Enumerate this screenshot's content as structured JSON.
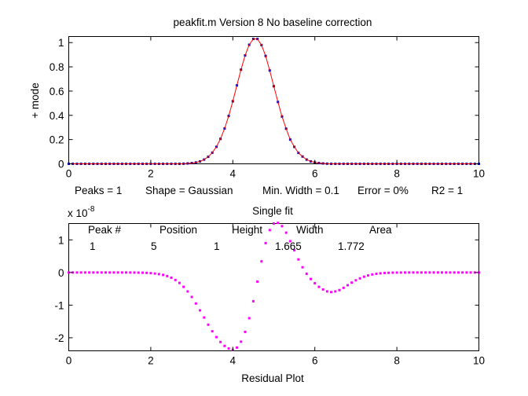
{
  "colors": {
    "background": "#ffffff",
    "axes": "#000000",
    "data_points": "#0000b0",
    "fit_line": "#ff0000",
    "residual_points": "#ff00ff"
  },
  "chart_data": [
    {
      "type": "scatter",
      "title": "peakfit.m Version 8   No baseline correction",
      "xlabel": "",
      "ylabel": "+ mode",
      "xlim": [
        0,
        10
      ],
      "ylim": [
        0,
        1.05
      ],
      "xticks": [
        "0",
        "2",
        "4",
        "6",
        "8",
        "10"
      ],
      "yticks": [
        "0",
        "0.2",
        "0.4",
        "0.6",
        "0.8",
        "1"
      ],
      "grid": false,
      "series": [
        {
          "kind": "points",
          "marker": "dot",
          "color": "#0000b0",
          "x": [
            0,
            0.1,
            0.2,
            0.3,
            0.4,
            0.5,
            0.6,
            0.7,
            0.8,
            0.9,
            1,
            1.1,
            1.2,
            1.3,
            1.4,
            1.5,
            1.6,
            1.7,
            1.8,
            1.9,
            2,
            2.1,
            2.2,
            2.3,
            2.4,
            2.5,
            2.6,
            2.7,
            2.8,
            2.9,
            3,
            3.1,
            3.2,
            3.3,
            3.4,
            3.5,
            3.6,
            3.7,
            3.8,
            3.9,
            4,
            4.1,
            4.2,
            4.3,
            4.4,
            4.5,
            4.6,
            4.7,
            4.8,
            4.9,
            5,
            5.1,
            5.2,
            5.3,
            5.4,
            5.5,
            5.6,
            5.7,
            5.8,
            5.9,
            6,
            6.1,
            6.2,
            6.3,
            6.4,
            6.5,
            6.6,
            6.7,
            6.8,
            6.9,
            7,
            7.1,
            7.2,
            7.3,
            7.4,
            7.5,
            7.6,
            7.7,
            7.8,
            7.9,
            8,
            8.1,
            8.2,
            8.3,
            8.4,
            8.5,
            8.6,
            8.7,
            8.8,
            8.9,
            9,
            9.1,
            9.2,
            9.3,
            9.4,
            9.5,
            9.6,
            9.7,
            9.8,
            9.9,
            10
          ],
          "y": [
            0,
            0,
            0,
            0,
            0,
            0,
            0,
            0,
            0,
            0,
            0,
            0,
            0,
            0,
            0,
            0,
            0,
            0,
            0,
            0,
            0,
            0,
            0,
            0,
            0,
            0,
            0,
            0,
            0.001,
            0.003,
            0.006,
            0.011,
            0.02,
            0.035,
            0.058,
            0.092,
            0.14,
            0.206,
            0.291,
            0.395,
            0.516,
            0.647,
            0.777,
            0.894,
            0.982,
            1.03,
            1.03,
            0.98,
            0.89,
            0.77,
            0.64,
            0.51,
            0.39,
            0.29,
            0.2,
            0.14,
            0.09,
            0.06,
            0.035,
            0.02,
            0.011,
            0.006,
            0.003,
            0.001,
            0,
            0,
            0,
            0,
            0,
            0,
            0,
            0,
            0,
            0,
            0,
            0,
            0,
            0,
            0,
            0,
            0,
            0,
            0,
            0,
            0,
            0,
            0,
            0,
            0,
            0,
            0,
            0,
            0,
            0,
            0,
            0,
            0,
            0,
            0,
            0,
            0
          ]
        },
        {
          "kind": "line",
          "color": "#ff0000",
          "x": [
            0,
            0.1,
            0.2,
            0.3,
            0.4,
            0.5,
            0.6,
            0.7,
            0.8,
            0.9,
            1,
            1.1,
            1.2,
            1.3,
            1.4,
            1.5,
            1.6,
            1.7,
            1.8,
            1.9,
            2,
            2.1,
            2.2,
            2.3,
            2.4,
            2.5,
            2.6,
            2.7,
            2.8,
            2.9,
            3,
            3.1,
            3.2,
            3.3,
            3.4,
            3.5,
            3.6,
            3.7,
            3.8,
            3.9,
            4,
            4.1,
            4.2,
            4.3,
            4.4,
            4.5,
            4.6,
            4.7,
            4.8,
            4.9,
            5,
            5.1,
            5.2,
            5.3,
            5.4,
            5.5,
            5.6,
            5.7,
            5.8,
            5.9,
            6,
            6.1,
            6.2,
            6.3,
            6.4,
            6.5,
            6.6,
            6.7,
            6.8,
            6.9,
            7,
            7.1,
            7.2,
            7.3,
            7.4,
            7.5,
            7.6,
            7.7,
            7.8,
            7.9,
            8,
            8.1,
            8.2,
            8.3,
            8.4,
            8.5,
            8.6,
            8.7,
            8.8,
            8.9,
            9,
            9.1,
            9.2,
            9.3,
            9.4,
            9.5,
            9.6,
            9.7,
            9.8,
            9.9,
            10
          ],
          "y": [
            0,
            0,
            0,
            0,
            0,
            0,
            0,
            0,
            0,
            0,
            0,
            0,
            0,
            0,
            0,
            0,
            0,
            0,
            0,
            0,
            0,
            0,
            0,
            0,
            0,
            0,
            0,
            0,
            0.001,
            0.003,
            0.006,
            0.011,
            0.02,
            0.035,
            0.058,
            0.092,
            0.14,
            0.206,
            0.291,
            0.395,
            0.516,
            0.647,
            0.777,
            0.894,
            0.982,
            1.03,
            1.03,
            0.98,
            0.89,
            0.77,
            0.64,
            0.51,
            0.39,
            0.29,
            0.2,
            0.14,
            0.09,
            0.06,
            0.035,
            0.02,
            0.011,
            0.006,
            0.003,
            0.001,
            0,
            0,
            0,
            0,
            0,
            0,
            0,
            0,
            0,
            0,
            0,
            0,
            0,
            0,
            0,
            0,
            0,
            0,
            0,
            0,
            0,
            0,
            0,
            0,
            0,
            0,
            0,
            0,
            0,
            0,
            0,
            0,
            0,
            0,
            0,
            0,
            0
          ]
        }
      ]
    },
    {
      "type": "scatter",
      "title": "Single fit",
      "xlabel": "Residual Plot",
      "ylabel": "",
      "y_exponent": "x 10",
      "y_exponent_power": "-8",
      "xlim": [
        0,
        10
      ],
      "ylim": [
        -2.4,
        1.5
      ],
      "xticks": [
        "0",
        "2",
        "4",
        "6",
        "8",
        "10"
      ],
      "yticks": [
        "-2",
        "-1",
        "0",
        "1"
      ],
      "grid": false,
      "series": [
        {
          "kind": "points",
          "marker": "dot",
          "color": "#ff00ff",
          "x": [
            0,
            0.1,
            0.2,
            0.3,
            0.4,
            0.5,
            0.6,
            0.7,
            0.8,
            0.9,
            1,
            1.1,
            1.2,
            1.3,
            1.4,
            1.5,
            1.6,
            1.7,
            1.8,
            1.9,
            2,
            2.1,
            2.2,
            2.3,
            2.4,
            2.5,
            2.6,
            2.7,
            2.8,
            2.9,
            3,
            3.1,
            3.2,
            3.3,
            3.4,
            3.5,
            3.6,
            3.7,
            3.8,
            3.9,
            4,
            4.1,
            4.2,
            4.3,
            4.4,
            4.5,
            4.6,
            4.7,
            4.8,
            4.9,
            5,
            5.1,
            5.2,
            5.3,
            5.4,
            5.5,
            5.6,
            5.7,
            5.8,
            5.9,
            6,
            6.1,
            6.2,
            6.3,
            6.4,
            6.5,
            6.6,
            6.7,
            6.8,
            6.9,
            7,
            7.1,
            7.2,
            7.3,
            7.4,
            7.5,
            7.6,
            7.7,
            7.8,
            7.9,
            8,
            8.1,
            8.2,
            8.3,
            8.4,
            8.5,
            8.6,
            8.7,
            8.8,
            8.9,
            9,
            9.1,
            9.2,
            9.3,
            9.4,
            9.5,
            9.6,
            9.7,
            9.8,
            9.9,
            10
          ],
          "y": [
            0,
            0,
            0,
            0,
            0,
            0,
            0,
            0,
            0,
            0,
            0,
            0,
            0,
            0,
            0,
            -0.001,
            -0.002,
            -0.004,
            -0.007,
            -0.012,
            -0.02,
            -0.032,
            -0.05,
            -0.075,
            -0.11,
            -0.16,
            -0.23,
            -0.32,
            -0.44,
            -0.58,
            -0.75,
            -0.95,
            -1.16,
            -1.38,
            -1.6,
            -1.8,
            -1.98,
            -2.13,
            -2.25,
            -2.33,
            -2.37,
            -2.3,
            -2.12,
            -1.82,
            -1.4,
            -0.88,
            -0.28,
            0.34,
            0.9,
            1.3,
            1.5,
            1.52,
            1.42,
            1.22,
            0.96,
            0.68,
            0.4,
            0.16,
            -0.04,
            -0.2,
            -0.33,
            -0.44,
            -0.52,
            -0.58,
            -0.6,
            -0.58,
            -0.54,
            -0.47,
            -0.39,
            -0.31,
            -0.24,
            -0.18,
            -0.13,
            -0.09,
            -0.06,
            -0.04,
            -0.025,
            -0.015,
            -0.009,
            -0.005,
            -0.003,
            -0.002,
            -0.001,
            0,
            0,
            0,
            0,
            0,
            0,
            0,
            0,
            0,
            0,
            0,
            0,
            0,
            0,
            0,
            0,
            0,
            0
          ]
        }
      ],
      "table": {
        "headers": [
          "Peak #",
          "Position",
          "Height",
          "Width",
          "Area"
        ],
        "rows": [
          [
            "1",
            "5",
            "1",
            "1.665",
            "1.772"
          ]
        ]
      }
    }
  ],
  "fit_summary": {
    "peaks": "Peaks = 1",
    "shape": "Shape = Gaussian",
    "min_width": "Min. Width = 0.1",
    "error": "Error = 0%",
    "r2": "R2 = 1"
  }
}
